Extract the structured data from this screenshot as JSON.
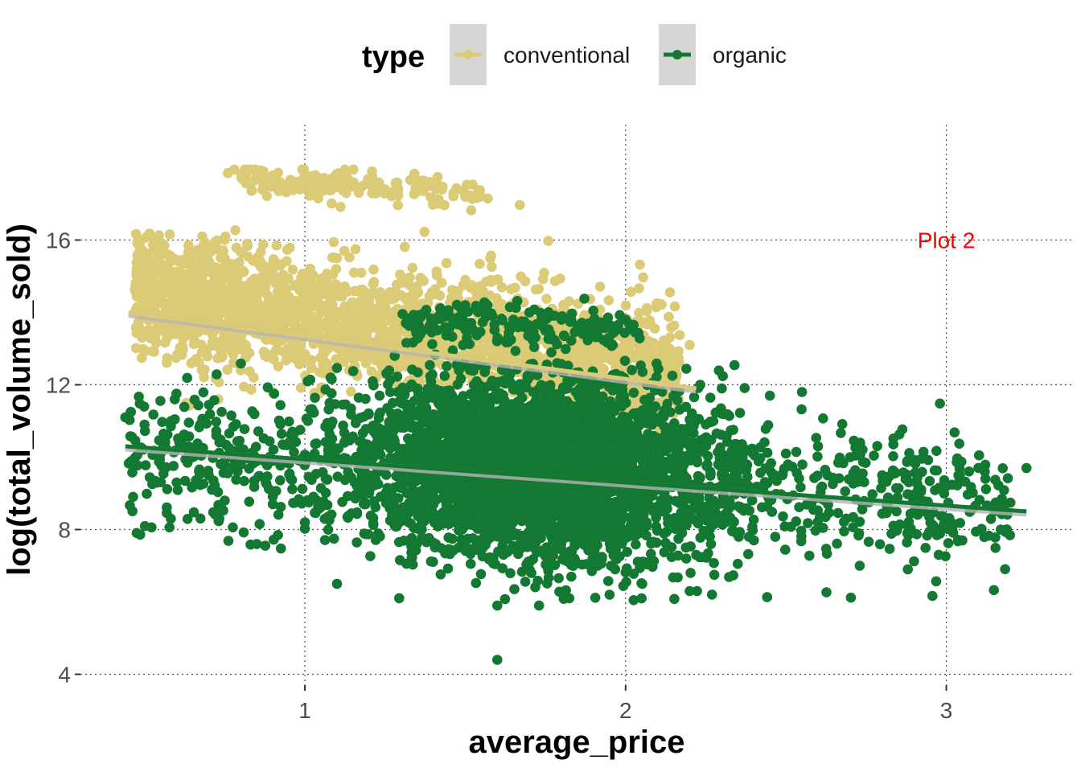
{
  "chart_data": {
    "type": "scatter",
    "title": "",
    "xlabel": "average_price",
    "ylabel": "log(total_volume_sold)",
    "xlim": [
      0.3,
      3.4
    ],
    "ylim": [
      3.7,
      19.3
    ],
    "x_ticks": [
      {
        "value": 1,
        "label": "1"
      },
      {
        "value": 2,
        "label": "2"
      },
      {
        "value": 3,
        "label": "3"
      }
    ],
    "y_ticks": [
      {
        "value": 4,
        "label": "4"
      },
      {
        "value": 8,
        "label": "8"
      },
      {
        "value": 12,
        "label": "12"
      },
      {
        "value": 16,
        "label": "16"
      }
    ],
    "grid": "dotted major gridlines",
    "legend": {
      "title": "type",
      "position": "top",
      "entries": [
        {
          "label": "conventional",
          "color": "#DBCB77"
        },
        {
          "label": "organic",
          "color": "#137832"
        }
      ]
    },
    "annotation": {
      "text": "Plot 2",
      "x": 3.0,
      "y": 16.0,
      "color": "#FF0000"
    },
    "series": [
      {
        "name": "conventional",
        "color": "#DBCB77",
        "approx_point_count": 9100,
        "x_range": [
          0.44,
          2.22
        ],
        "y_range": [
          10.6,
          17.9
        ],
        "cluster_summary": [
          {
            "region": "main band",
            "x_range": [
              0.45,
              2.2
            ],
            "y_range": [
              11,
              16.3
            ]
          },
          {
            "region": "upper band",
            "x_range": [
              0.76,
              1.67
            ],
            "y_range": [
              16.9,
              17.9
            ]
          }
        ],
        "points": [
          [
            0.76,
            17.85
          ],
          [
            0.78,
            17.95
          ],
          [
            0.87,
            17.9
          ],
          [
            1.0,
            17.5
          ],
          [
            1.07,
            17.6
          ],
          [
            1.15,
            17.55
          ],
          [
            1.25,
            17.4
          ],
          [
            1.37,
            17.35
          ],
          [
            1.5,
            17.2
          ],
          [
            1.57,
            17.15
          ],
          [
            1.67,
            16.97
          ],
          [
            1.42,
            17.0
          ],
          [
            0.52,
            14.4
          ],
          [
            0.6,
            14.2
          ],
          [
            0.68,
            16.1
          ],
          [
            0.75,
            15.5
          ],
          [
            0.82,
            15.9
          ],
          [
            0.9,
            15.2
          ],
          [
            1.0,
            14.8
          ],
          [
            1.1,
            15.5
          ],
          [
            1.2,
            14.3
          ],
          [
            1.3,
            15.0
          ],
          [
            1.4,
            14.5
          ],
          [
            1.5,
            14.9
          ],
          [
            1.6,
            14.2
          ],
          [
            1.7,
            13.9
          ],
          [
            1.8,
            13.6
          ],
          [
            1.9,
            13.5
          ],
          [
            2.0,
            13.0
          ],
          [
            2.1,
            12.5
          ],
          [
            2.2,
            13.1
          ],
          [
            0.63,
            11.5
          ],
          [
            0.73,
            11.6
          ],
          [
            0.8,
            12.4
          ],
          [
            0.9,
            11.8
          ],
          [
            0.98,
            13.0
          ],
          [
            1.45,
            12.8
          ],
          [
            1.83,
            10.9
          ],
          [
            1.62,
            13.2
          ],
          [
            0.47,
            14.65
          ]
        ],
        "trend": {
          "x": [
            0.45,
            2.22
          ],
          "y": [
            14.0,
            11.9
          ]
        }
      },
      {
        "name": "organic",
        "color": "#137832",
        "approx_point_count": 9100,
        "x_range": [
          0.44,
          3.25
        ],
        "y_range": [
          4.4,
          14.4
        ],
        "cluster_summary": [
          {
            "region": "dense core",
            "x_range": [
              1.05,
              2.35
            ],
            "y_range": [
              6.0,
              12.4
            ]
          },
          {
            "region": "upper branch",
            "x_range": [
              1.3,
              2.1
            ],
            "y_range": [
              13.0,
              14.4
            ]
          }
        ],
        "points": [
          [
            0.44,
            11.1
          ],
          [
            0.5,
            10.9
          ],
          [
            0.55,
            10.1
          ],
          [
            0.6,
            9.3
          ],
          [
            0.65,
            10.0
          ],
          [
            0.7,
            9.5
          ],
          [
            0.75,
            8.8
          ],
          [
            0.8,
            9.8
          ],
          [
            0.85,
            7.6
          ],
          [
            0.9,
            8.7
          ],
          [
            0.95,
            10.4
          ],
          [
            1.0,
            8.2
          ],
          [
            1.1,
            6.5
          ],
          [
            1.2,
            9.0
          ],
          [
            1.3,
            11.5
          ],
          [
            1.35,
            13.8
          ],
          [
            1.45,
            13.9
          ],
          [
            1.5,
            14.2
          ],
          [
            1.55,
            14.1
          ],
          [
            1.6,
            4.4
          ],
          [
            1.65,
            13.8
          ],
          [
            1.7,
            14.0
          ],
          [
            1.75,
            13.5
          ],
          [
            1.8,
            13.8
          ],
          [
            1.9,
            13.7
          ],
          [
            2.0,
            13.8
          ],
          [
            1.6,
            5.9
          ],
          [
            1.73,
            5.9
          ],
          [
            1.95,
            6.2
          ],
          [
            2.05,
            6.1
          ],
          [
            2.2,
            6.3
          ],
          [
            2.3,
            11.2
          ],
          [
            2.45,
            11.7
          ],
          [
            2.55,
            11.8
          ],
          [
            2.6,
            10.3
          ],
          [
            2.7,
            10.0
          ],
          [
            2.8,
            9.5
          ],
          [
            2.9,
            8.5
          ],
          [
            3.0,
            9.2
          ],
          [
            3.05,
            7.7
          ],
          [
            3.12,
            9.6
          ],
          [
            3.17,
            8.0
          ],
          [
            3.25,
            9.7
          ],
          [
            2.88,
            6.9
          ],
          [
            2.73,
            7.0
          ],
          [
            1.08,
            12.2
          ],
          [
            1.28,
            12.8
          ],
          [
            1.48,
            12.4
          ],
          [
            1.97,
            12.3
          ],
          [
            2.3,
            11.9
          ]
        ],
        "trend": {
          "x": [
            0.44,
            3.25
          ],
          "y": [
            10.3,
            8.5
          ]
        }
      }
    ]
  }
}
